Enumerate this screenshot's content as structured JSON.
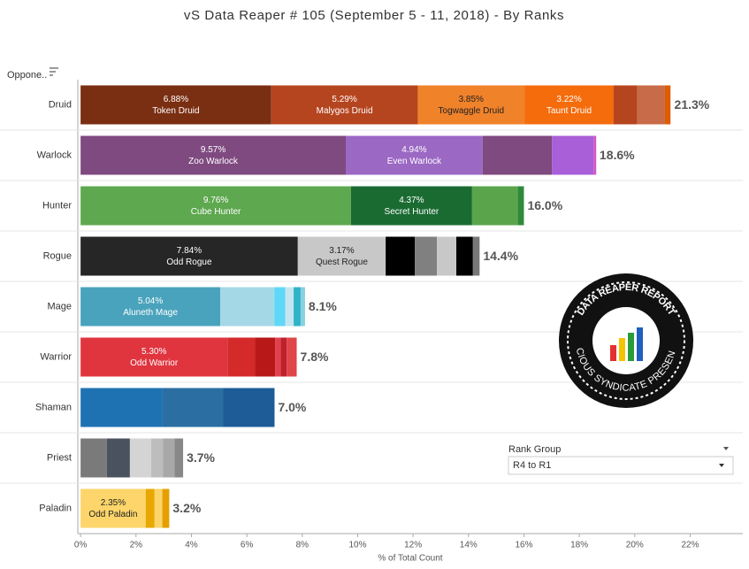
{
  "chart_data": {
    "type": "stacked_hbar",
    "title": "vS Data Reaper #  105 (September 5 - 11, 2018) - By Ranks",
    "axis_label_y": "Oppone..",
    "axis_label_x": "% of Total Count",
    "xlim": [
      -0.1,
      23.9
    ],
    "xticks": [
      {
        "value": 0,
        "label": "0%"
      },
      {
        "value": 2,
        "label": "2%"
      },
      {
        "value": 4,
        "label": "4%"
      },
      {
        "value": 6,
        "label": "6%"
      },
      {
        "value": 8,
        "label": "8%"
      },
      {
        "value": 10,
        "label": "10%"
      },
      {
        "value": 12,
        "label": "12%"
      },
      {
        "value": 14,
        "label": "14%"
      },
      {
        "value": 16,
        "label": "16%"
      },
      {
        "value": 18,
        "label": "18%"
      },
      {
        "value": 20,
        "label": "20%"
      },
      {
        "value": 22,
        "label": "22%"
      }
    ],
    "categories": [
      "Druid",
      "Warlock",
      "Hunter",
      "Rogue",
      "Mage",
      "Warrior",
      "Shaman",
      "Priest",
      "Paladin"
    ],
    "totals": [
      21.3,
      18.6,
      16.0,
      14.4,
      8.1,
      7.8,
      7.0,
      3.7,
      3.2
    ],
    "total_labels": [
      "21.3%",
      "18.6%",
      "16.0%",
      "14.4%",
      "8.1%",
      "7.8%",
      "7.0%",
      "3.7%",
      "3.2%"
    ],
    "segments": [
      [
        {
          "label": "Token Druid",
          "value": 6.88,
          "value_label": "6.88%",
          "color": "#7a2e12"
        },
        {
          "label": "Malygos Druid",
          "value": 5.29,
          "value_label": "5.29%",
          "color": "#b5451f"
        },
        {
          "label": "Togwaggle Druid",
          "value": 3.85,
          "value_label": "3.85%",
          "color": "#f0822a"
        },
        {
          "label": "Taunt Druid",
          "value": 3.22,
          "value_label": "3.22%",
          "color": "#f46c0c"
        },
        {
          "value": 0.85,
          "color": "#b5451f"
        },
        {
          "value": 1.0,
          "color": "#c86b48"
        },
        {
          "value": 0.2,
          "color": "#e05a00"
        }
      ],
      [
        {
          "label": "Zoo Warlock",
          "value": 9.57,
          "value_label": "9.57%",
          "color": "#7f4a80"
        },
        {
          "label": "Even Warlock",
          "value": 4.94,
          "value_label": "4.94%",
          "color": "#9b68c4"
        },
        {
          "value": 2.5,
          "color": "#7e4a7f"
        },
        {
          "value": 1.5,
          "color": "#a95fd8"
        },
        {
          "value": 0.1,
          "color": "#d05ac8"
        }
      ],
      [
        {
          "label": "Cube Hunter",
          "value": 9.76,
          "value_label": "9.76%",
          "color": "#5ea84f"
        },
        {
          "label": "Secret Hunter",
          "value": 4.37,
          "value_label": "4.37%",
          "color": "#1a6b32"
        },
        {
          "value": 1.65,
          "color": "#5aa54c"
        },
        {
          "value": 0.22,
          "color": "#2f8a3a"
        }
      ],
      [
        {
          "label": "Odd Rogue",
          "value": 7.84,
          "value_label": "7.84%",
          "color": "#262626"
        },
        {
          "label": "Quest Rogue",
          "value": 3.17,
          "value_label": "3.17%",
          "color": "#c8c8c8"
        },
        {
          "value": 1.05,
          "color": "#000000"
        },
        {
          "value": 0.8,
          "color": "#808080"
        },
        {
          "value": 0.7,
          "color": "#c8c8c8"
        },
        {
          "value": 0.6,
          "color": "#000000"
        },
        {
          "value": 0.24,
          "color": "#777777"
        }
      ],
      [
        {
          "label": "Aluneth Mage",
          "value": 5.04,
          "value_label": "5.04%",
          "color": "#4aa3bd"
        },
        {
          "value": 1.95,
          "color": "#a5d8e6"
        },
        {
          "value": 0.4,
          "color": "#5fd8f8"
        },
        {
          "value": 0.3,
          "color": "#c5e6ee"
        },
        {
          "value": 0.25,
          "color": "#2fb3c8"
        },
        {
          "value": 0.16,
          "color": "#89d0e0"
        }
      ],
      [
        {
          "label": "Odd Warrior",
          "value": 5.3,
          "value_label": "5.30%",
          "color": "#e0353f"
        },
        {
          "value": 1.0,
          "color": "#d42a2a"
        },
        {
          "value": 0.72,
          "color": "#b81818"
        },
        {
          "value": 0.2,
          "color": "#e04050"
        },
        {
          "value": 0.22,
          "color": "#c0202a"
        },
        {
          "value": 0.36,
          "color": "#e0454a"
        }
      ],
      [
        {
          "value": 2.95,
          "color": "#1f72b2"
        },
        {
          "value": 2.2,
          "color": "#2b6fa2"
        },
        {
          "value": 1.85,
          "color": "#1e5c98"
        }
      ],
      [
        {
          "value": 0.95,
          "color": "#7a7a7a"
        },
        {
          "value": 0.83,
          "color": "#4a5260"
        },
        {
          "value": 0.77,
          "color": "#d4d4d4"
        },
        {
          "value": 0.42,
          "color": "#bdbdbd"
        },
        {
          "value": 0.42,
          "color": "#a8a8a8"
        },
        {
          "value": 0.31,
          "color": "#888888"
        }
      ],
      [
        {
          "label": "Odd Paladin",
          "value": 2.35,
          "value_label": "2.35%",
          "color": "#fdd56a"
        },
        {
          "value": 0.32,
          "color": "#e8a800"
        },
        {
          "value": 0.28,
          "color": "#fbd46a"
        },
        {
          "value": 0.25,
          "color": "#e59f00"
        }
      ]
    ]
  },
  "filter": {
    "label": "Rank Group",
    "selected": "R4 to R1"
  },
  "logo": {
    "line1": "DATA REAPER REPORT",
    "line2": "VICIOUS SYNDICATE PRESENTS"
  }
}
